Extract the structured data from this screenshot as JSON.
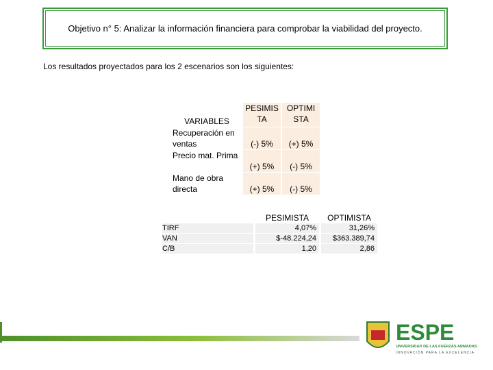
{
  "header": {
    "title": "Objetivo n° 5: Analizar la información financiera para comprobar la viabilidad del proyecto."
  },
  "intro": "Los resultados proyectados para los 2 escenarios son los siguientes:",
  "variables_table": {
    "headers": [
      "VARIABLES",
      "PESIMISTA",
      "OPTIMISTA"
    ],
    "rows": [
      [
        "Recuperación en ventas",
        "(-) 5%",
        "(+) 5%"
      ],
      [
        "Precio mat. Prima",
        "(+) 5%",
        "(-) 5%"
      ],
      [
        "Mano de obra directa",
        "(+) 5%",
        "(-) 5%"
      ]
    ]
  },
  "results_table": {
    "headers": [
      "PESIMISTA",
      "OPTIMISTA"
    ],
    "rows": [
      [
        "TIRF",
        "4,07%",
        "31,26%"
      ],
      [
        "VAN",
        "$-48.224,24",
        "$363.389,74"
      ],
      [
        "C/B",
        "1,20",
        "2,86"
      ]
    ]
  },
  "logo": {
    "name": "ESPE",
    "line1": "UNIVERSIDAD DE LAS FUERZAS ARMADAS",
    "line2": "INNOVACIÓN PARA LA EXCELENCIA"
  }
}
